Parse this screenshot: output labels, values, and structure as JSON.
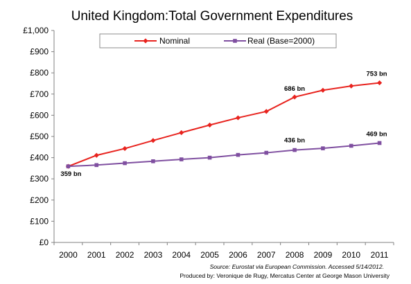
{
  "chart_data": {
    "type": "line",
    "title": "United Kingdom:Total Government Expenditures",
    "x": [
      "2000",
      "2001",
      "2002",
      "2003",
      "2004",
      "2005",
      "2006",
      "2007",
      "2008",
      "2009",
      "2010",
      "2011"
    ],
    "ylim": [
      0,
      1000
    ],
    "yticks": [
      "£0",
      "£100",
      "£200",
      "£300",
      "£400",
      "£500",
      "£600",
      "£700",
      "£800",
      "£900",
      "£1,000"
    ],
    "grid": false,
    "legend_position": "top",
    "series": [
      {
        "name": "Nominal",
        "color": "#e8231e",
        "marker": "diamond",
        "values": [
          359,
          411,
          443,
          481,
          518,
          554,
          588,
          618,
          686,
          718,
          738,
          753
        ]
      },
      {
        "name": "Real (Base=2000)",
        "color": "#7f4fa0",
        "marker": "square",
        "values": [
          359,
          365,
          374,
          383,
          392,
          400,
          413,
          423,
          436,
          444,
          456,
          469
        ]
      }
    ],
    "annotations": [
      {
        "text": "359 bn",
        "series": 0,
        "index": 0
      },
      {
        "text": "686 bn",
        "series": 0,
        "index": 8
      },
      {
        "text": "753 bn",
        "series": 0,
        "index": 11
      },
      {
        "text": "436 bn",
        "series": 1,
        "index": 8
      },
      {
        "text": "469 bn",
        "series": 1,
        "index": 11
      }
    ],
    "source_note": "Source: Eurostat via European Commission. Accessed 5/14/2012.",
    "credit": "Produced by: Veronique de Rugy, Mercatus Center at George Mason University"
  }
}
